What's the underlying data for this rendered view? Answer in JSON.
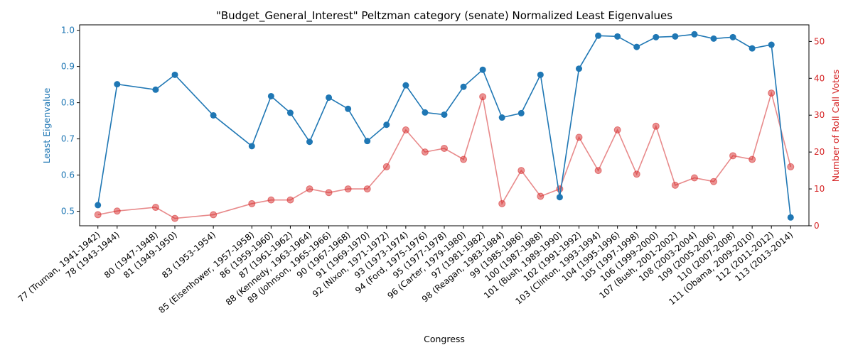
{
  "chart_data": {
    "type": "line",
    "title": "\"Budget_General_Interest\" Peltzman category (senate) Normalized Least Eigenvalues",
    "xlabel": "Congress",
    "ylabel_left": "Least Eigenvalue",
    "ylabel_right": "Number of Roll Call Votes",
    "ylim_left": [
      0.46,
      1.015
    ],
    "ylim_right": [
      0,
      54.5
    ],
    "yticks_left": [
      "0.5",
      "0.6",
      "0.7",
      "0.8",
      "0.9",
      "1.0"
    ],
    "yticks_right": [
      "0",
      "10",
      "20",
      "30",
      "40",
      "50"
    ],
    "colors": {
      "left": "#1f77b4",
      "right": "#d62728",
      "right_line": "#e88a8b"
    },
    "grid": false,
    "x": [
      77,
      78,
      80,
      81,
      83,
      85,
      86,
      87,
      88,
      89,
      90,
      91,
      92,
      93,
      94,
      95,
      96,
      97,
      98,
      99,
      100,
      101,
      102,
      103,
      104,
      105,
      106,
      107,
      108,
      109,
      110,
      111,
      112,
      113
    ],
    "tick_labels": [
      "77 (Truman, 1941-1942)",
      "78 (1943-1944)",
      "80 (1947-1948)",
      "81 (1949-1950)",
      "83 (1953-1954)",
      "85 (Eisenhower, 1957-1958)",
      "86 (1959-1960)",
      "87 (1961-1962)",
      "88 (Kennedy, 1963-1964)",
      "89 (Johnson, 1965-1966)",
      "90 (1967-1968)",
      "91 (1969-1970)",
      "92 (Nixon, 1971-1972)",
      "93 (1973-1974)",
      "94 (Ford, 1975-1976)",
      "95 (1977-1978)",
      "96 (Carter, 1979-1980)",
      "97 (1981-1982)",
      "98 (Reagan, 1983-1984)",
      "99 (1985-1986)",
      "100 (1987-1988)",
      "101 (Bush, 1989-1990)",
      "102 (1991-1992)",
      "103 (Clinton, 1993-1994)",
      "104 (1995-1996)",
      "105 (1997-1998)",
      "106 (1999-2000)",
      "107 (Bush, 2001-2002)",
      "108 (2003-2004)",
      "109 (2005-2006)",
      "110 (2007-2008)",
      "111 (Obama, 2009-2010)",
      "112 (2011-2012)",
      "113 (2013-2014)"
    ],
    "series": [
      {
        "axis": "left",
        "values": [
          0.517,
          0.851,
          0.836,
          0.877,
          0.765,
          0.68,
          0.818,
          0.772,
          0.692,
          0.814,
          0.783,
          0.694,
          0.739,
          0.848,
          0.773,
          0.767,
          0.844,
          0.891,
          0.759,
          0.771,
          0.877,
          0.539,
          0.894,
          0.985,
          0.983,
          0.954,
          0.981,
          0.983,
          0.989,
          0.977,
          0.981,
          0.95,
          0.96,
          0.483
        ]
      },
      {
        "axis": "right",
        "values": [
          3,
          4,
          5,
          2,
          3,
          6,
          7,
          7,
          10,
          9,
          10,
          10,
          16,
          26,
          20,
          21,
          18,
          35,
          6,
          15,
          8,
          10,
          24,
          15,
          26,
          14,
          27,
          11,
          13,
          12,
          19,
          18,
          36,
          16
        ]
      }
    ]
  }
}
